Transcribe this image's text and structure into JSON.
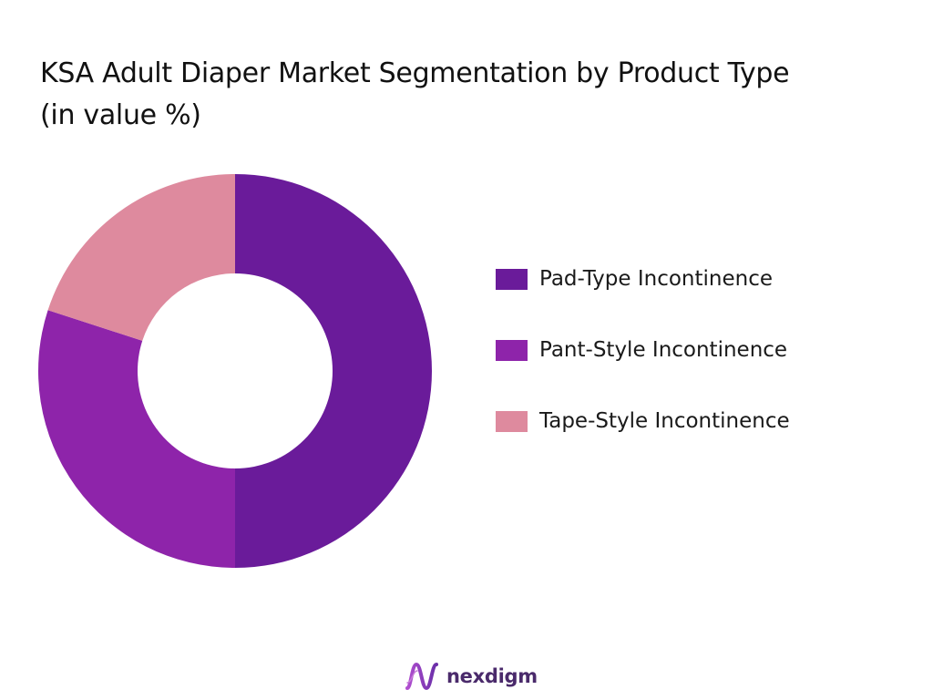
{
  "page": {
    "title_line1": "KSA Adult Diaper Market Segmentation by Product Type",
    "title_line2": "(in value %)"
  },
  "chart_data": {
    "type": "pie",
    "donut": true,
    "title": "KSA Adult Diaper Market Segmentation by Product Type (in value %)",
    "legend_position": "right",
    "categories": [
      "Pad-Type Incontinence",
      "Pant-Style Incontinence",
      "Tape-Style Incontinence"
    ],
    "values": [
      50,
      30,
      20
    ],
    "colors": [
      "#6a1b9a",
      "#8e24aa",
      "#de8a9e"
    ]
  },
  "brand": {
    "name": "nexdigm",
    "logo_icon": "nexdigm-wave-logo-icon",
    "color": "#4a2a6b"
  }
}
